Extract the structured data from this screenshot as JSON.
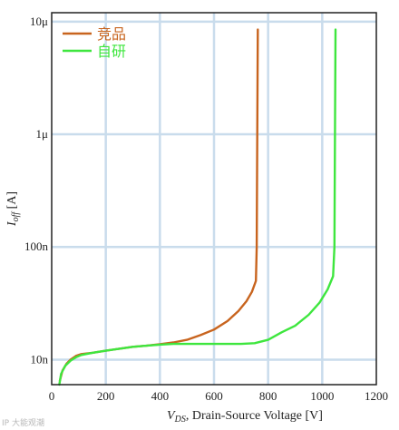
{
  "chart_data": {
    "type": "line",
    "title": "",
    "xlabel": {
      "symbol": "V",
      "subscript": "DS",
      "text": ", Drain-Source Voltage [V]"
    },
    "ylabel": {
      "symbol": "I",
      "subscript": "off",
      "unit": " [A]"
    },
    "x_scale": "linear",
    "y_scale": "log",
    "xlim": [
      0,
      1200
    ],
    "ylim": [
      6e-09,
      1.2e-05
    ],
    "x_ticks": [
      0,
      200,
      400,
      600,
      800,
      1000,
      1200
    ],
    "y_ticks": [
      {
        "value": 1e-08,
        "label": "10n"
      },
      {
        "value": 1e-07,
        "label": "100n"
      },
      {
        "value": 1e-06,
        "label": "1μ"
      },
      {
        "value": 1e-05,
        "label": "10μ"
      }
    ],
    "grid": true,
    "legend_position": "top-left",
    "series": [
      {
        "name": "竞品",
        "color": "#c8641e",
        "points": [
          [
            30,
            6.5e-09
          ],
          [
            40,
            8e-09
          ],
          [
            55,
            9.2e-09
          ],
          [
            70,
            1e-08
          ],
          [
            90,
            1.08e-08
          ],
          [
            110,
            1.12e-08
          ],
          [
            150,
            1.15e-08
          ],
          [
            200,
            1.2e-08
          ],
          [
            250,
            1.25e-08
          ],
          [
            300,
            1.3e-08
          ],
          [
            350,
            1.33e-08
          ],
          [
            400,
            1.37e-08
          ],
          [
            450,
            1.42e-08
          ],
          [
            500,
            1.5e-08
          ],
          [
            550,
            1.65e-08
          ],
          [
            600,
            1.85e-08
          ],
          [
            650,
            2.2e-08
          ],
          [
            690,
            2.7e-08
          ],
          [
            720,
            3.3e-08
          ],
          [
            740,
            4e-08
          ],
          [
            755,
            5e-08
          ],
          [
            758,
            1e-07
          ],
          [
            760,
            1e-06
          ],
          [
            762,
            8.5e-06
          ]
        ]
      },
      {
        "name": "自研",
        "color": "#3ee63e",
        "points": [
          [
            28,
            6e-09
          ],
          [
            35,
            7.5e-09
          ],
          [
            50,
            8.8e-09
          ],
          [
            70,
            9.8e-09
          ],
          [
            90,
            1.05e-08
          ],
          [
            110,
            1.1e-08
          ],
          [
            150,
            1.15e-08
          ],
          [
            200,
            1.2e-08
          ],
          [
            250,
            1.25e-08
          ],
          [
            300,
            1.3e-08
          ],
          [
            350,
            1.33e-08
          ],
          [
            400,
            1.36e-08
          ],
          [
            450,
            1.38e-08
          ],
          [
            500,
            1.38e-08
          ],
          [
            600,
            1.38e-08
          ],
          [
            700,
            1.38e-08
          ],
          [
            750,
            1.4e-08
          ],
          [
            800,
            1.5e-08
          ],
          [
            850,
            1.75e-08
          ],
          [
            900,
            2e-08
          ],
          [
            950,
            2.5e-08
          ],
          [
            990,
            3.2e-08
          ],
          [
            1020,
            4.2e-08
          ],
          [
            1040,
            5.5e-08
          ],
          [
            1045,
            1e-07
          ],
          [
            1047,
            1e-06
          ],
          [
            1049,
            8.5e-06
          ]
        ]
      }
    ]
  },
  "watermark": "IP 大能观潮"
}
